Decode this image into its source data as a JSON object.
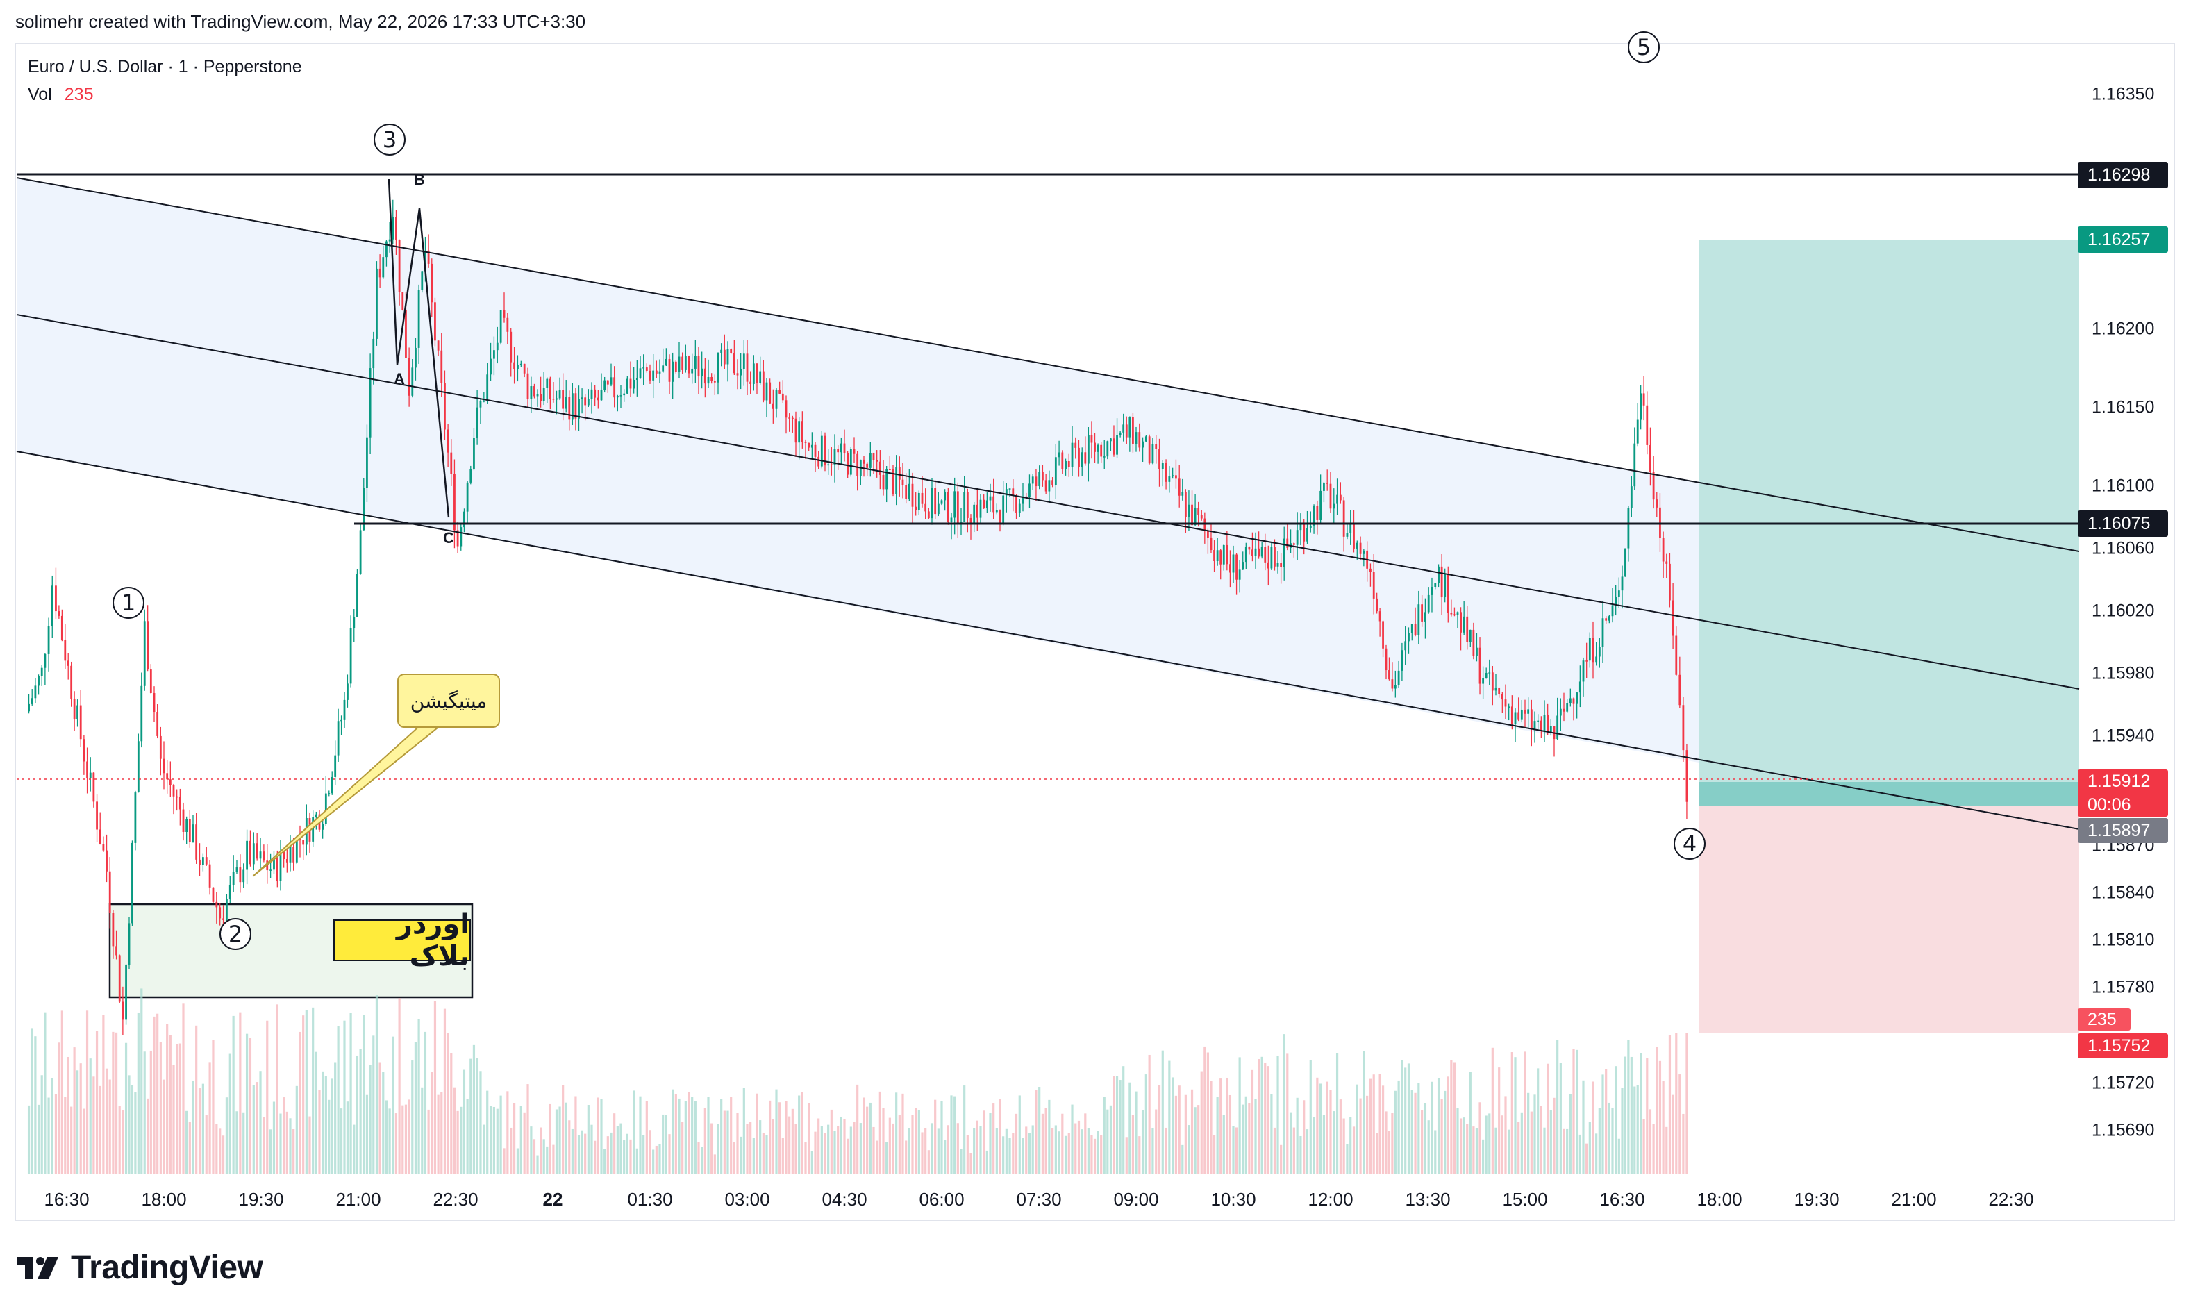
{
  "header": {
    "credit": "solimehr created with TradingView.com, May 22, 2026 17:33 UTC+3:30"
  },
  "legend": {
    "symbol": "Euro / U.S. Dollar · 1 · Pepperstone",
    "vol_label": "Vol",
    "vol_value": "235"
  },
  "annotations": {
    "mitigation": "میتیگیشن",
    "order_block": "اوردر بلاک",
    "waves": [
      "1",
      "2",
      "3",
      "4",
      "5"
    ],
    "abc": [
      "A",
      "B",
      "C"
    ]
  },
  "price_axis": {
    "ticks": [
      "1.16350",
      "1.16200",
      "1.16150",
      "1.16100",
      "1.16060",
      "1.16020",
      "1.15980",
      "1.15940",
      "1.15870",
      "1.15840",
      "1.15810",
      "1.15780",
      "1.15720",
      "1.15690"
    ],
    "tags": [
      {
        "value": "1.16298",
        "color": "#131722"
      },
      {
        "value": "1.16257",
        "color": "#089981"
      },
      {
        "value": "1.16075",
        "color": "#131722"
      },
      {
        "value": "1.15912",
        "color": "#f23645"
      },
      {
        "value": "00:06",
        "color": "#f23645"
      },
      {
        "value": "1.15897",
        "color": "#787b86"
      },
      {
        "value": "235",
        "color": "#f7525f"
      },
      {
        "value": "1.15752",
        "color": "#f23645"
      }
    ]
  },
  "time_axis": {
    "ticks": [
      "16:30",
      "18:00",
      "19:30",
      "21:00",
      "22:30",
      "22",
      "01:30",
      "03:00",
      "04:30",
      "06:00",
      "07:30",
      "09:00",
      "10:30",
      "12:00",
      "13:30",
      "15:00",
      "16:30",
      "18:00",
      "19:30",
      "21:00",
      "22:30"
    ]
  },
  "colors": {
    "up": "#089981",
    "down": "#f23645",
    "channel_fill": "#eef4fd",
    "target": "#b2dfdb",
    "stop": "#f8d7da",
    "order_block": "#edf6ed"
  },
  "logo": {
    "word": "TradingView"
  },
  "chart_data": {
    "type": "candlestick",
    "symbol": "EURUSD",
    "interval": "1",
    "ylim": [
      1.15675,
      1.1639
    ],
    "x_range": [
      "16:00",
      "23:30 (next day)"
    ],
    "key_levels": {
      "wave3_high": 1.16298,
      "target": 1.16257,
      "support": 1.16075,
      "last_price": 1.15912,
      "entry": 1.15897,
      "stop": 1.15752
    },
    "price_path": [
      [
        "15:55",
        1.15965
      ],
      [
        "16:10",
        1.1599
      ],
      [
        "16:20",
        1.1605
      ],
      [
        "16:40",
        1.1597
      ],
      [
        "17:10",
        1.1586
      ],
      [
        "17:25",
        1.1576
      ],
      [
        "17:45",
        1.1602
      ],
      [
        "18:00",
        1.1593
      ],
      [
        "18:30",
        1.1588
      ],
      [
        "18:55",
        1.1583
      ],
      [
        "19:20",
        1.1587
      ],
      [
        "19:45",
        1.1586
      ],
      [
        "20:30",
        1.159
      ],
      [
        "20:50",
        1.1597
      ],
      [
        "21:05",
        1.1608
      ],
      [
        "21:20",
        1.1625
      ],
      [
        "21:35",
        1.16298
      ],
      [
        "21:50",
        1.1618
      ],
      [
        "22:05",
        1.1627
      ],
      [
        "22:20",
        1.16175
      ],
      [
        "22:35",
        1.16075
      ],
      [
        "22:50",
        1.1615
      ],
      [
        "23:15",
        1.1622
      ],
      [
        "23:40",
        1.1618
      ],
      [
        "00:30",
        1.16165
      ],
      [
        "01:30",
        1.1619
      ],
      [
        "03:00",
        1.16195
      ],
      [
        "04:00",
        1.1614
      ],
      [
        "05:00",
        1.16125
      ],
      [
        "06:00",
        1.161
      ],
      [
        "07:00",
        1.161
      ],
      [
        "08:10",
        1.16135
      ],
      [
        "09:00",
        1.1615
      ],
      [
        "09:40",
        1.1611
      ],
      [
        "10:30",
        1.1606
      ],
      [
        "11:20",
        1.1607
      ],
      [
        "12:00",
        1.1611
      ],
      [
        "12:40",
        1.1606
      ],
      [
        "13:00",
        1.1598
      ],
      [
        "13:40",
        1.1606
      ],
      [
        "14:30",
        1.1598
      ],
      [
        "15:00",
        1.1596
      ],
      [
        "15:30",
        1.1595
      ],
      [
        "16:00",
        1.16
      ],
      [
        "16:30",
        1.1604
      ],
      [
        "16:50",
        1.1618
      ],
      [
        "17:05",
        1.161
      ],
      [
        "17:20",
        1.1602
      ],
      [
        "17:33",
        1.15912
      ]
    ]
  }
}
